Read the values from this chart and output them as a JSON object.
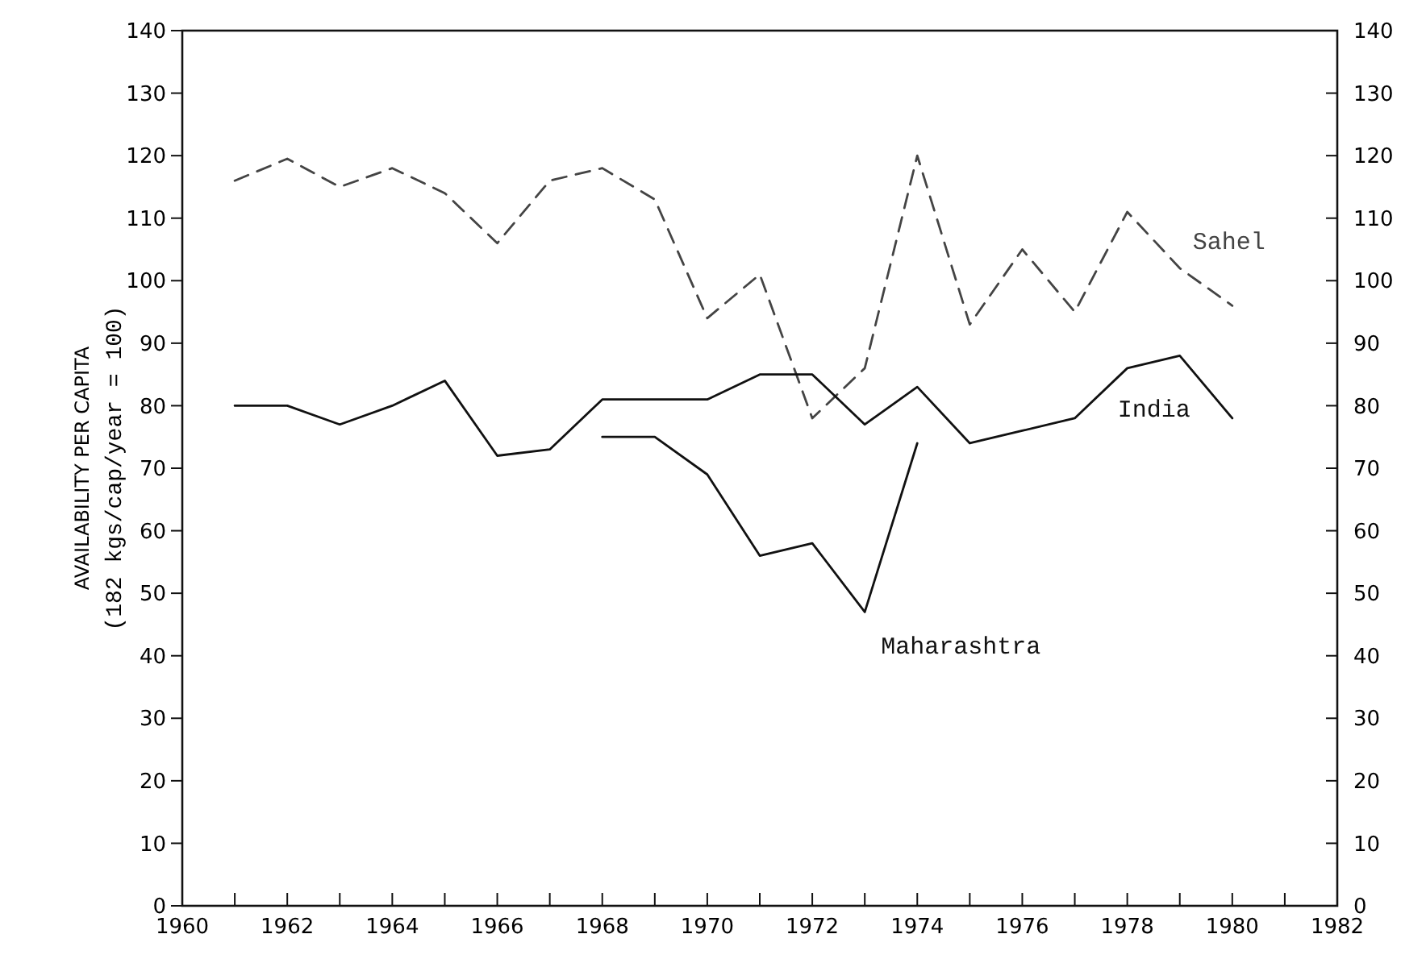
{
  "chart_data": {
    "type": "line",
    "ylabel": "AVAILABILITY PER CAPITA\n(182 kgs/cap/year = 100)",
    "xlim": [
      1960,
      1982
    ],
    "xticks": [
      1960,
      {
        "value": 1961,
        "label": null
      },
      1962,
      {
        "value": 1963,
        "label": null
      },
      1964,
      {
        "value": 1965,
        "label": null
      },
      1966,
      {
        "value": 1967,
        "label": null
      },
      1968,
      {
        "value": 1969,
        "label": null
      },
      1970,
      {
        "value": 1971,
        "label": null
      },
      1972,
      {
        "value": 1973,
        "label": null
      },
      1974,
      {
        "value": 1975,
        "label": null
      },
      1976,
      {
        "value": 1977,
        "label": null
      },
      1978,
      {
        "value": 1979,
        "label": null
      },
      1980,
      {
        "value": 1981,
        "label": null
      },
      1982
    ],
    "ylim": [
      0,
      140
    ],
    "yticks": [
      0,
      10,
      20,
      30,
      40,
      50,
      60,
      70,
      80,
      90,
      100,
      110,
      120,
      130,
      140
    ],
    "y2lim": [
      0,
      140
    ],
    "y2ticks": [
      0,
      10,
      20,
      30,
      40,
      50,
      60,
      70,
      80,
      90,
      100,
      110,
      120,
      130,
      140
    ],
    "grid": false,
    "marker": "none",
    "series": [
      {
        "name": "Sahel",
        "color": "#444444",
        "line_style": "dashed",
        "x": [
          1961,
          1962,
          1963,
          1964,
          1965,
          1966,
          1967,
          1968,
          1969,
          1970,
          1971,
          1972,
          1973,
          1974,
          1975,
          1976,
          1977,
          1978,
          1979,
          1980
        ],
        "values": [
          116,
          119.5,
          115,
          118,
          114,
          106,
          116,
          118,
          113,
          94,
          101,
          78,
          86,
          120,
          93,
          105,
          95,
          111,
          102,
          96
        ]
      },
      {
        "name": "India",
        "color": "#111111",
        "line_style": "solid",
        "x": [
          1961,
          1962,
          1963,
          1964,
          1965,
          1966,
          1967,
          1968,
          1969,
          1970,
          1971,
          1972,
          1973,
          1974,
          1975,
          1976,
          1977,
          1978,
          1979,
          1980
        ],
        "values": [
          80,
          80,
          77,
          80,
          84,
          72,
          73,
          81,
          81,
          81,
          85,
          85,
          77,
          83,
          74,
          76,
          78,
          86,
          88,
          78
        ]
      },
      {
        "name": "Maharashtra",
        "color": "#111111",
        "line_style": "solid",
        "x": [
          1968,
          1969,
          1970,
          1971,
          1972,
          1973,
          1974
        ],
        "values": [
          75,
          75,
          69,
          56,
          58,
          47,
          74
        ]
      }
    ]
  }
}
